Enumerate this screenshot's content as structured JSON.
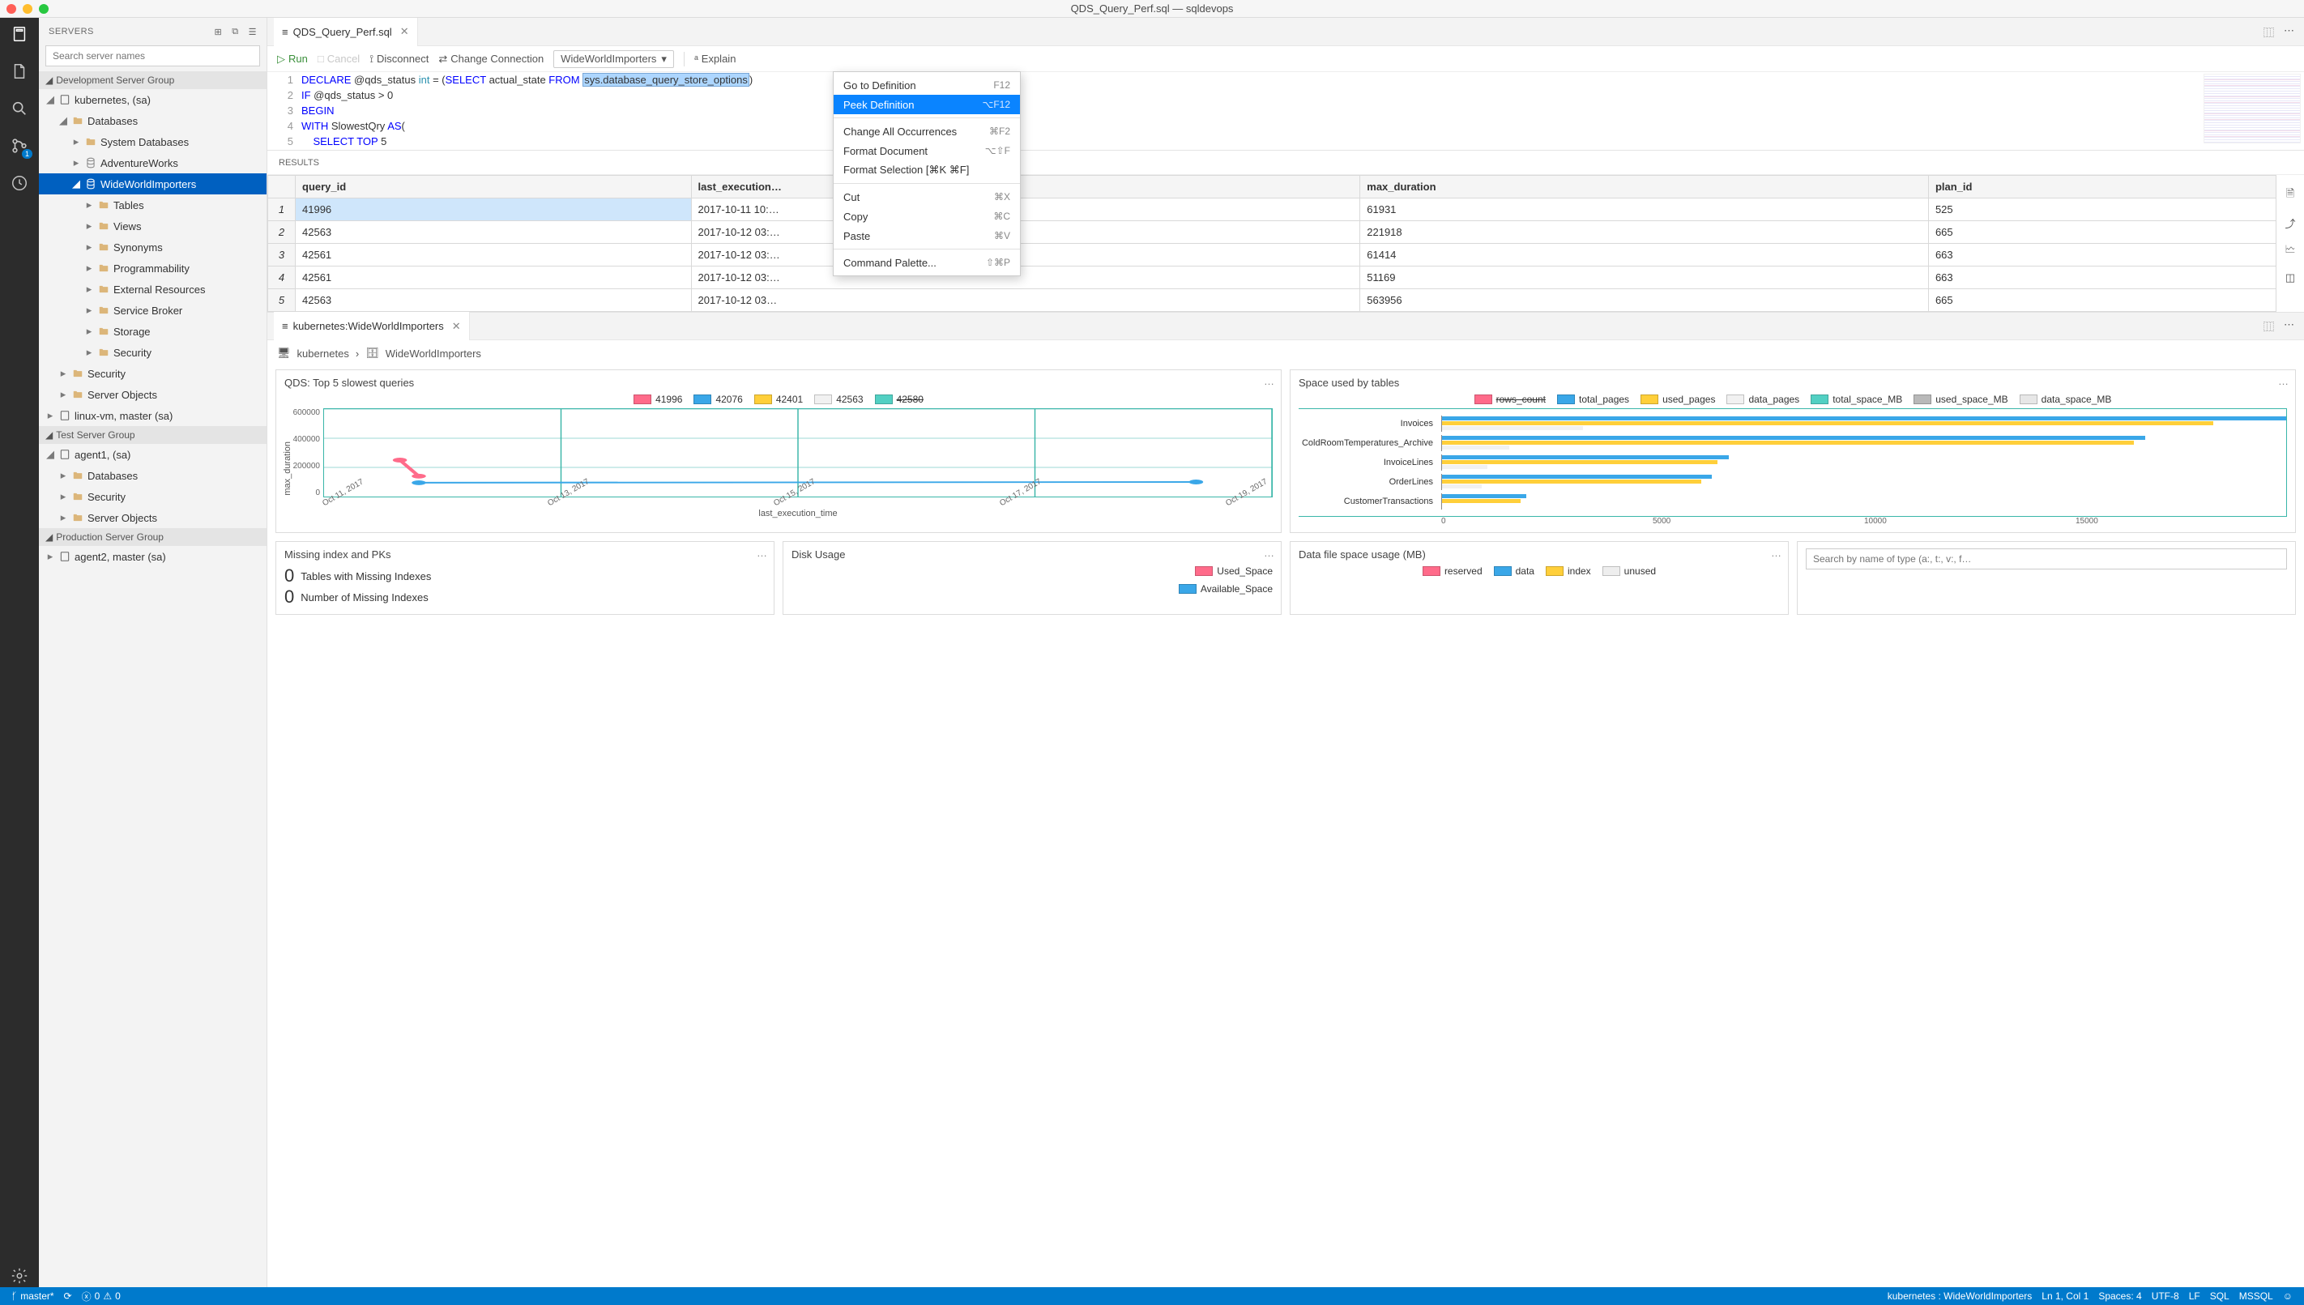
{
  "window": {
    "title": "QDS_Query_Perf.sql — sqldevops"
  },
  "activity": {
    "badge": "1"
  },
  "sidebar": {
    "header": "SERVERS",
    "search_placeholder": "Search server names",
    "groups": [
      {
        "name": "Development Server Group",
        "servers": [
          {
            "name": "kubernetes, <default> (sa)",
            "children": [
              {
                "name": "Databases",
                "children": [
                  {
                    "name": "System Databases",
                    "type": "folder"
                  },
                  {
                    "name": "AdventureWorks",
                    "type": "db"
                  },
                  {
                    "name": "WideWorldImporters",
                    "type": "db",
                    "selected": true,
                    "children": [
                      {
                        "name": "Tables",
                        "type": "folder"
                      },
                      {
                        "name": "Views",
                        "type": "folder"
                      },
                      {
                        "name": "Synonyms",
                        "type": "folder"
                      },
                      {
                        "name": "Programmability",
                        "type": "folder"
                      },
                      {
                        "name": "External Resources",
                        "type": "folder"
                      },
                      {
                        "name": "Service Broker",
                        "type": "folder"
                      },
                      {
                        "name": "Storage",
                        "type": "folder"
                      },
                      {
                        "name": "Security",
                        "type": "folder"
                      }
                    ]
                  }
                ]
              },
              {
                "name": "Security",
                "type": "folder"
              },
              {
                "name": "Server Objects",
                "type": "folder"
              }
            ]
          },
          {
            "name": "linux-vm, master (sa)"
          }
        ]
      },
      {
        "name": "Test Server Group",
        "servers": [
          {
            "name": "agent1, <default> (sa)",
            "children": [
              {
                "name": "Databases",
                "type": "folder"
              },
              {
                "name": "Security",
                "type": "folder"
              },
              {
                "name": "Server Objects",
                "type": "folder"
              }
            ]
          }
        ]
      },
      {
        "name": "Production Server Group",
        "servers": [
          {
            "name": "agent2, master (sa)"
          }
        ]
      }
    ]
  },
  "editor": {
    "tab": {
      "label": "QDS_Query_Perf.sql"
    },
    "toolbar": {
      "run": "Run",
      "cancel": "Cancel",
      "disconnect": "Disconnect",
      "change_conn": "Change Connection",
      "db": "WideWorldImporters",
      "explain": "Explain"
    },
    "code": {
      "lines": [
        {
          "n": 1,
          "seg": [
            [
              "kw",
              "DECLARE"
            ],
            [
              "",
              " @qds_status "
            ],
            [
              "type",
              "int"
            ],
            [
              "",
              " = ("
            ],
            [
              "kw",
              "SELECT"
            ],
            [
              "",
              " actual_state "
            ],
            [
              "kw",
              "FROM"
            ],
            [
              "",
              " "
            ],
            [
              "sel",
              "sys.database_query_store_options"
            ],
            [
              "",
              ")"
            ]
          ]
        },
        {
          "n": 2,
          "seg": [
            [
              "kw",
              "IF"
            ],
            [
              "",
              " @qds_status > 0"
            ]
          ]
        },
        {
          "n": 3,
          "seg": [
            [
              "kw",
              "BEGIN"
            ]
          ]
        },
        {
          "n": 4,
          "seg": [
            [
              "kw",
              "WITH"
            ],
            [
              "",
              " SlowestQry "
            ],
            [
              "kw",
              "AS"
            ],
            [
              "",
              "("
            ]
          ]
        },
        {
          "n": 5,
          "seg": [
            [
              "",
              "    "
            ],
            [
              "kw",
              "SELECT"
            ],
            [
              "",
              " "
            ],
            [
              "kw",
              "TOP"
            ],
            [
              "",
              " 5"
            ]
          ]
        }
      ]
    },
    "context_menu": [
      {
        "label": "Go to Definition",
        "shortcut": "F12"
      },
      {
        "label": "Peek Definition",
        "shortcut": "⌥F12",
        "active": true
      },
      {
        "sep": true
      },
      {
        "label": "Change All Occurrences",
        "shortcut": "⌘F2"
      },
      {
        "label": "Format Document",
        "shortcut": "⌥⇧F"
      },
      {
        "label": "Format Selection [⌘K ⌘F]",
        "shortcut": ""
      },
      {
        "sep": true
      },
      {
        "label": "Cut",
        "shortcut": "⌘X"
      },
      {
        "label": "Copy",
        "shortcut": "⌘C"
      },
      {
        "label": "Paste",
        "shortcut": "⌘V"
      },
      {
        "sep": true
      },
      {
        "label": "Command Palette...",
        "shortcut": "⇧⌘P"
      }
    ]
  },
  "results": {
    "header": "RESULTS",
    "columns": [
      "query_id",
      "last_execution…",
      "max_duration",
      "plan_id"
    ],
    "rows": [
      [
        "41996",
        "2017-10-11 10:…",
        "61931",
        "525"
      ],
      [
        "42563",
        "2017-10-12 03:…",
        "221918",
        "665"
      ],
      [
        "42561",
        "2017-10-12 03:…",
        "61414",
        "663"
      ],
      [
        "42561",
        "2017-10-12 03:…",
        "51169",
        "663"
      ],
      [
        "42563",
        "2017-10-12 03…",
        "563956",
        "665"
      ]
    ],
    "selected_row": 0
  },
  "dashboard": {
    "tab_label": "kubernetes:WideWorldImporters",
    "breadcrumb": {
      "server": "kubernetes",
      "db": "WideWorldImporters"
    },
    "chart1": {
      "title": "QDS: Top 5 slowest queries",
      "legend": [
        {
          "label": "41996",
          "color": "#ff6b8a"
        },
        {
          "label": "42076",
          "color": "#3aa7e8"
        },
        {
          "label": "42401",
          "color": "#ffcf3a"
        },
        {
          "label": "42563",
          "color": "#f1f1f1"
        },
        {
          "label": "42580",
          "color": "#52d0c3",
          "struck": true
        }
      ],
      "y_label": "max_duration",
      "x_label": "last_execution_time",
      "y_ticks": [
        "0",
        "200000",
        "400000",
        "600000"
      ],
      "x_ticks": [
        "Oct 11, 2017",
        "Oct 13, 2017",
        "Oct 15, 2017",
        "Oct 17, 2017",
        "Oct 19, 2017"
      ],
      "ylim": [
        0,
        600000
      ],
      "lines": [
        {
          "color": "#ff6b8a",
          "pts": [
            [
              0.08,
              250000
            ],
            [
              0.1,
              140000
            ]
          ]
        },
        {
          "color": "#3aa7e8",
          "pts": [
            [
              0.1,
              95000
            ],
            [
              0.92,
              100000
            ]
          ]
        }
      ],
      "grid_color": "#3ab6a9"
    },
    "chart2": {
      "title": "Space used by tables",
      "legend": [
        {
          "label": "rows_count",
          "color": "#ff6b8a",
          "struck": true
        },
        {
          "label": "total_pages",
          "color": "#3aa7e8"
        },
        {
          "label": "used_pages",
          "color": "#ffcf3a"
        },
        {
          "label": "data_pages",
          "color": "#f1f1f1"
        },
        {
          "label": "total_space_MB",
          "color": "#52d0c3"
        },
        {
          "label": "used_space_MB",
          "color": "#b9b9b9"
        },
        {
          "label": "data_space_MB",
          "color": "#e7e7e7"
        }
      ],
      "x_ticks": [
        "0",
        "5000",
        "10000",
        "15000"
      ],
      "xmax": 15000,
      "rows": [
        {
          "label": "Invoices",
          "bars": [
            {
              "c": "#3aa7e8",
              "v": 15000
            },
            {
              "c": "#ffcf3a",
              "v": 13700
            },
            {
              "c": "#f1f1f1",
              "v": 2500
            }
          ]
        },
        {
          "label": "ColdRoomTemperatures_Archive",
          "bars": [
            {
              "c": "#3aa7e8",
              "v": 12500
            },
            {
              "c": "#ffcf3a",
              "v": 12300
            },
            {
              "c": "#f1f1f1",
              "v": 1200
            }
          ]
        },
        {
          "label": "InvoiceLines",
          "bars": [
            {
              "c": "#3aa7e8",
              "v": 5100
            },
            {
              "c": "#ffcf3a",
              "v": 4900
            },
            {
              "c": "#f1f1f1",
              "v": 800
            }
          ]
        },
        {
          "label": "OrderLines",
          "bars": [
            {
              "c": "#3aa7e8",
              "v": 4800
            },
            {
              "c": "#ffcf3a",
              "v": 4600
            },
            {
              "c": "#f1f1f1",
              "v": 700
            }
          ]
        },
        {
          "label": "CustomerTransactions",
          "bars": [
            {
              "c": "#3aa7e8",
              "v": 1500
            },
            {
              "c": "#ffcf3a",
              "v": 1400
            }
          ]
        }
      ],
      "grid_color": "#3ab6a9"
    },
    "card3": {
      "title": "Missing index and PKs",
      "rows": [
        {
          "n": "0",
          "label": "Tables with Missing Indexes"
        },
        {
          "n": "0",
          "label": "Number of Missing Indexes"
        }
      ]
    },
    "card4": {
      "title": "Disk Usage",
      "legend": [
        {
          "label": "Used_Space",
          "color": "#ff6b8a"
        },
        {
          "label": "Available_Space",
          "color": "#3aa7e8"
        }
      ]
    },
    "card5": {
      "title": "Data file space usage (MB)",
      "legend": [
        {
          "label": "reserved",
          "color": "#ff6b8a"
        },
        {
          "label": "data",
          "color": "#3aa7e8"
        },
        {
          "label": "index",
          "color": "#ffcf3a"
        },
        {
          "label": "unused",
          "color": "#eeeeee"
        }
      ]
    },
    "search_placeholder": "Search by name of type (a:, t:, v:, f…"
  },
  "statusbar": {
    "branch": "master*",
    "errors": "0",
    "warnings": "0",
    "right": {
      "conn": "kubernetes : WideWorldImporters",
      "pos": "Ln 1, Col 1",
      "spaces": "Spaces: 4",
      "enc": "UTF-8",
      "eol": "LF",
      "lang": "SQL",
      "provider": "MSSQL"
    }
  }
}
